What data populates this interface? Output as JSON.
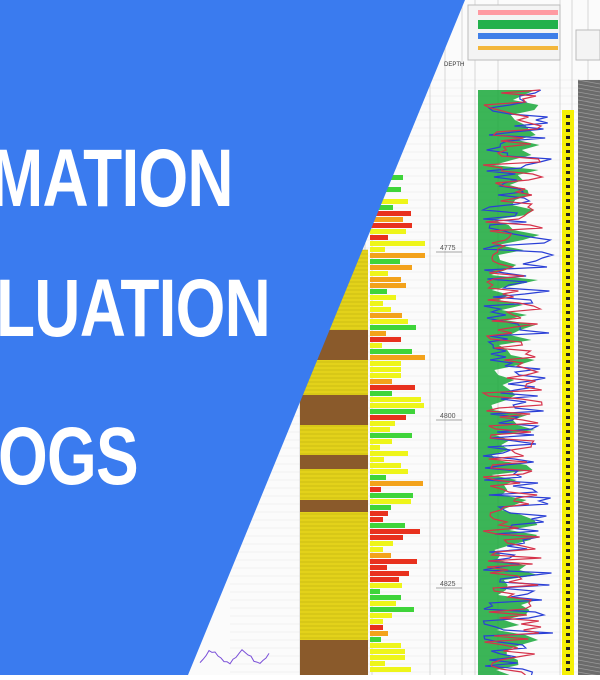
{
  "banner": {
    "title_lines": [
      "MATION",
      "LUATION",
      "OGS"
    ],
    "background_color": "#3a7bef",
    "text_color": "#ffffff"
  },
  "log_image": {
    "header_labels": [
      "DEPTH"
    ],
    "depth_ticks": [
      "4775",
      "4800",
      "4825"
    ],
    "colors": {
      "gamma_fill": "#19a83a",
      "resistivity_blue": "#2a3fd6",
      "resistivity_red": "#d6324a",
      "lithology_sand": "#e3d21a",
      "lithology_shale": "#8a5a2b",
      "pay_red": "#e8311e",
      "pay_orange": "#f3a21b",
      "pay_yellow": "#eef51a",
      "pay_green": "#3fd43a",
      "core_yellow": "#f5f005",
      "core_black": "#222222"
    }
  }
}
